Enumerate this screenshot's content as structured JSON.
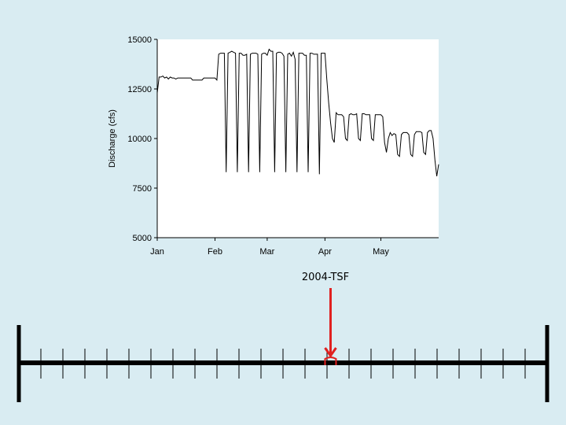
{
  "chart_data": {
    "type": "line",
    "title": "",
    "xlabel": "",
    "ylabel": "Discharge (cfs)",
    "ylim": [
      5000,
      15000
    ],
    "y_ticks": [
      "5000",
      "7500",
      "10000",
      "12500",
      "15000"
    ],
    "x_ticks": [
      "Jan",
      "Feb",
      "Mar",
      "Apr",
      "May"
    ],
    "x_tick_days": [
      0,
      31,
      59,
      90,
      120
    ],
    "xlim": [
      0,
      151
    ],
    "grid": false,
    "series": [
      {
        "points": [
          [
            0,
            12300
          ],
          [
            1,
            13100
          ],
          [
            2,
            13100
          ],
          [
            3,
            13150
          ],
          [
            4,
            13050
          ],
          [
            5,
            13100
          ],
          [
            6,
            13000
          ],
          [
            7,
            13100
          ],
          [
            8,
            13050
          ],
          [
            9,
            13050
          ],
          [
            10,
            13000
          ],
          [
            11,
            13050
          ],
          [
            12,
            13050
          ],
          [
            13,
            13050
          ],
          [
            14,
            13050
          ],
          [
            15,
            13050
          ],
          [
            16,
            13050
          ],
          [
            17,
            13050
          ],
          [
            18,
            13050
          ],
          [
            19,
            12950
          ],
          [
            20,
            12950
          ],
          [
            21,
            12950
          ],
          [
            22,
            12950
          ],
          [
            23,
            12950
          ],
          [
            24,
            12950
          ],
          [
            25,
            13050
          ],
          [
            26,
            13050
          ],
          [
            27,
            13050
          ],
          [
            28,
            13050
          ],
          [
            29,
            13050
          ],
          [
            30,
            13050
          ],
          [
            31,
            13050
          ],
          [
            32,
            12950
          ],
          [
            33,
            14250
          ],
          [
            34,
            14300
          ],
          [
            35,
            14300
          ],
          [
            36,
            14300
          ],
          [
            37,
            8300
          ],
          [
            38,
            14300
          ],
          [
            39,
            14350
          ],
          [
            40,
            14400
          ],
          [
            41,
            14350
          ],
          [
            42,
            14300
          ],
          [
            43,
            8300
          ],
          [
            44,
            14300
          ],
          [
            45,
            14300
          ],
          [
            46,
            14200
          ],
          [
            47,
            14200
          ],
          [
            48,
            14250
          ],
          [
            49,
            8300
          ],
          [
            50,
            14250
          ],
          [
            51,
            14300
          ],
          [
            52,
            14300
          ],
          [
            53,
            14300
          ],
          [
            54,
            14250
          ],
          [
            55,
            8300
          ],
          [
            56,
            14250
          ],
          [
            57,
            14300
          ],
          [
            58,
            14300
          ],
          [
            59,
            14200
          ],
          [
            60,
            14500
          ],
          [
            61,
            14400
          ],
          [
            62,
            14400
          ],
          [
            63,
            8300
          ],
          [
            64,
            14300
          ],
          [
            65,
            14350
          ],
          [
            66,
            14350
          ],
          [
            67,
            14300
          ],
          [
            68,
            14150
          ],
          [
            69,
            8300
          ],
          [
            70,
            14250
          ],
          [
            71,
            14300
          ],
          [
            72,
            14150
          ],
          [
            73,
            14350
          ],
          [
            74,
            14000
          ],
          [
            75,
            8300
          ],
          [
            76,
            14300
          ],
          [
            77,
            14300
          ],
          [
            78,
            14300
          ],
          [
            79,
            14200
          ],
          [
            80,
            14200
          ],
          [
            81,
            8300
          ],
          [
            82,
            14300
          ],
          [
            83,
            14300
          ],
          [
            84,
            14250
          ],
          [
            85,
            14250
          ],
          [
            86,
            14250
          ],
          [
            87,
            8200
          ],
          [
            88,
            14300
          ],
          [
            89,
            14300
          ],
          [
            90,
            14300
          ],
          [
            91,
            13000
          ],
          [
            92,
            11800
          ],
          [
            93,
            10800
          ],
          [
            94,
            10000
          ],
          [
            95,
            9800
          ],
          [
            96,
            11300
          ],
          [
            97,
            11200
          ],
          [
            98,
            11200
          ],
          [
            99,
            11200
          ],
          [
            100,
            11100
          ],
          [
            101,
            10000
          ],
          [
            102,
            9900
          ],
          [
            103,
            11200
          ],
          [
            104,
            11250
          ],
          [
            105,
            11200
          ],
          [
            106,
            11200
          ],
          [
            107,
            11250
          ],
          [
            108,
            10000
          ],
          [
            109,
            9900
          ],
          [
            110,
            11250
          ],
          [
            111,
            11250
          ],
          [
            112,
            11200
          ],
          [
            113,
            11200
          ],
          [
            114,
            11200
          ],
          [
            115,
            10000
          ],
          [
            116,
            9900
          ],
          [
            117,
            11200
          ],
          [
            118,
            11200
          ],
          [
            119,
            11200
          ],
          [
            120,
            11200
          ],
          [
            121,
            11100
          ],
          [
            122,
            9800
          ],
          [
            123,
            9300
          ],
          [
            124,
            10000
          ],
          [
            125,
            10300
          ],
          [
            126,
            10150
          ],
          [
            127,
            10250
          ],
          [
            128,
            10200
          ],
          [
            129,
            9200
          ],
          [
            130,
            9100
          ],
          [
            131,
            10200
          ],
          [
            132,
            10300
          ],
          [
            133,
            10300
          ],
          [
            134,
            10300
          ],
          [
            135,
            10200
          ],
          [
            136,
            9200
          ],
          [
            137,
            9100
          ],
          [
            138,
            10200
          ],
          [
            139,
            10350
          ],
          [
            140,
            10350
          ],
          [
            141,
            10350
          ],
          [
            142,
            10300
          ],
          [
            143,
            9300
          ],
          [
            144,
            9200
          ],
          [
            145,
            10300
          ],
          [
            146,
            10400
          ],
          [
            147,
            10400
          ],
          [
            148,
            10000
          ],
          [
            149,
            8900
          ],
          [
            150,
            8100
          ],
          [
            151,
            8700
          ]
        ]
      }
    ]
  },
  "timeline": {
    "marker_label": "2004-TSF",
    "tick_count": 23,
    "marker_position": 0.59
  },
  "colors": {
    "background": "#d9ecf2",
    "plot_background": "#ffffff",
    "line": "#000000",
    "timeline_bar": "#000000",
    "marker": "#e02020"
  }
}
